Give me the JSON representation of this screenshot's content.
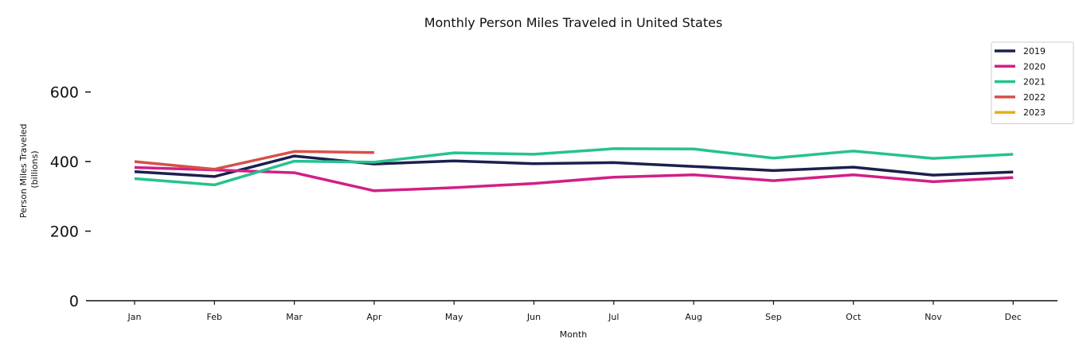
{
  "chart_data": {
    "type": "line",
    "title": "Monthly Person Miles Traveled in United States",
    "xlabel": "Month",
    "ylabel_lines": [
      "Person Miles Traveled",
      "(billions)"
    ],
    "categories": [
      "Jan",
      "Feb",
      "Mar",
      "Apr",
      "May",
      "Jun",
      "Jul",
      "Aug",
      "Sep",
      "Oct",
      "Nov",
      "Dec"
    ],
    "ylim": [
      0,
      750
    ],
    "yticks": [
      0,
      200,
      400,
      600
    ],
    "grid": false,
    "legend_position": "top-right",
    "series": [
      {
        "name": "2019",
        "color": "#1c1f4e",
        "values": [
          371,
          357,
          416,
          393,
          402,
          394,
          397,
          386,
          374,
          384,
          361,
          370
        ]
      },
      {
        "name": "2020",
        "color": "#d21f86",
        "values": [
          383,
          376,
          368,
          316,
          325,
          337,
          355,
          362,
          345,
          362,
          342,
          354
        ]
      },
      {
        "name": "2021",
        "color": "#26c28e",
        "values": [
          351,
          333,
          401,
          398,
          425,
          421,
          437,
          436,
          410,
          430,
          409,
          421
        ]
      },
      {
        "name": "2022",
        "color": "#d6504a",
        "values": [
          400,
          378,
          429,
          426,
          null,
          null,
          null,
          null,
          null,
          null,
          null,
          null
        ]
      },
      {
        "name": "2023",
        "color": "#e0b21d",
        "values": [
          null,
          null,
          null,
          null,
          null,
          null,
          null,
          null,
          null,
          null,
          null,
          null
        ]
      }
    ]
  }
}
